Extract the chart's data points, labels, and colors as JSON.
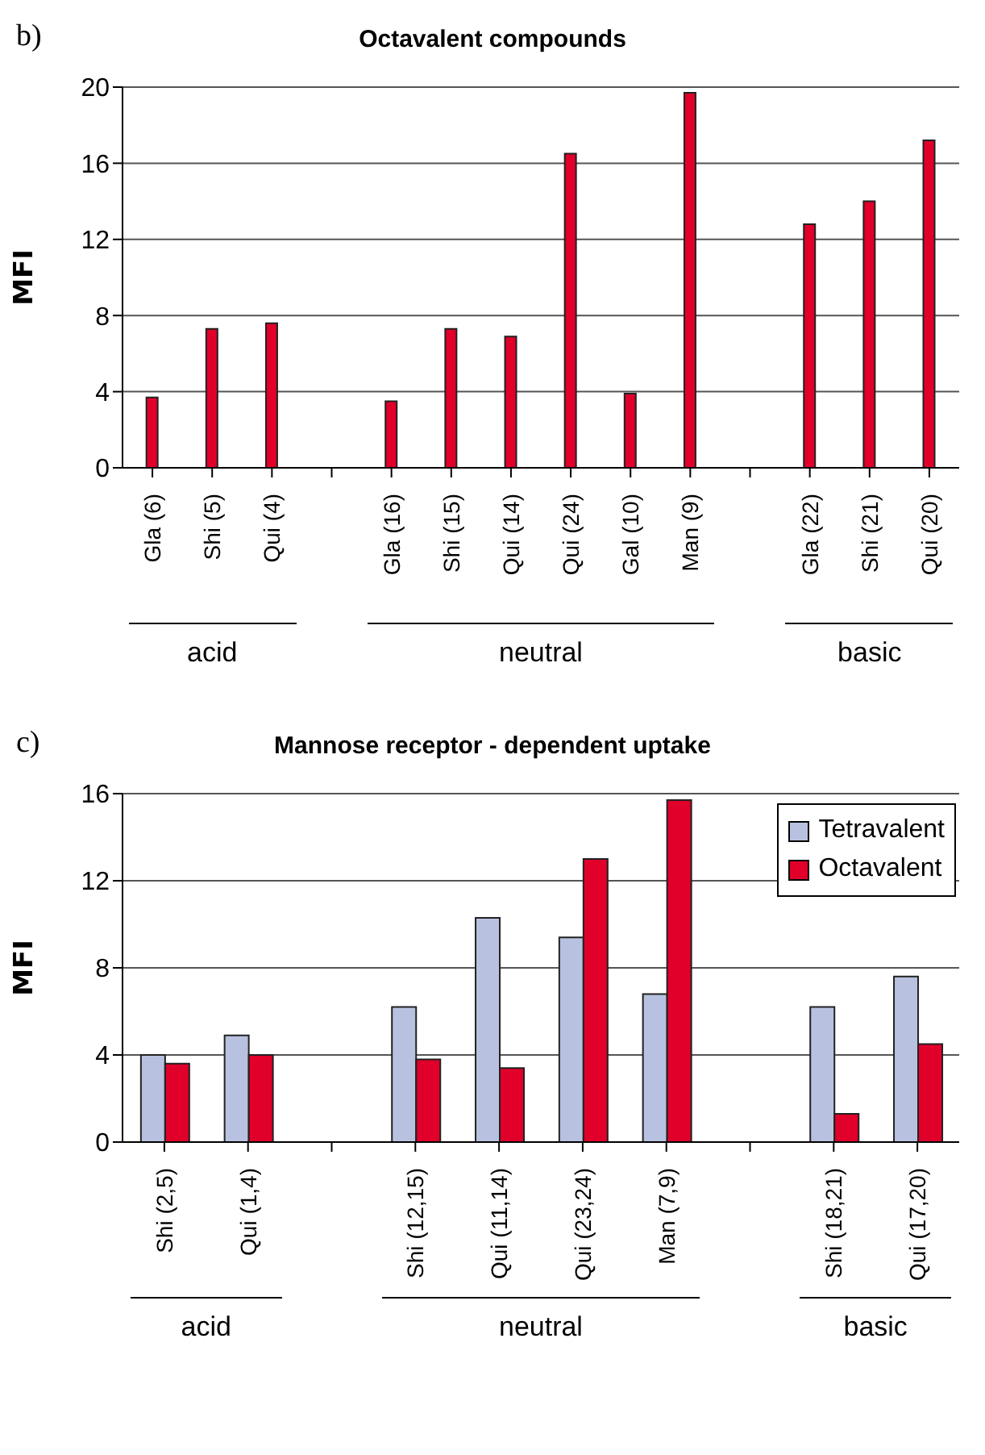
{
  "chart_data": [
    {
      "type": "bar",
      "title": "Octavalent compounds",
      "ylabel": "MFI",
      "annotations": [
        "b)",
        "acid",
        "neutral",
        "basic"
      ],
      "categories": [
        "Gla (6)",
        "Shi (5)",
        "Qui (4)",
        null,
        "Gla (16)",
        "Shi (15)",
        "Qui (14)",
        "Qui (24)",
        "Gal (10)",
        "Man (9)",
        null,
        "Gla (22)",
        "Shi (21)",
        "Qui (20)"
      ],
      "values": [
        3.7,
        7.3,
        7.6,
        null,
        3.5,
        7.3,
        6.9,
        16.5,
        3.9,
        19.7,
        null,
        12.8,
        14.0,
        17.2
      ],
      "color": "#e0002a",
      "ylim": [
        0,
        20
      ],
      "yticks": [
        0,
        4,
        8,
        12,
        16,
        20
      ],
      "grid": "y"
    },
    {
      "type": "bar",
      "title": "Mannose receptor - dependent uptake",
      "ylabel": "MFI",
      "annotations": [
        "c)",
        "acid",
        "neutral",
        "basic"
      ],
      "categories": [
        "Shi (2,5)",
        "Qui (1,4)",
        null,
        "Shi (12,15)",
        "Qui (11,14)",
        "Qui (23,24)",
        "Man (7,9)",
        null,
        "Shi (18,21)",
        "Qui (17,20)"
      ],
      "series": [
        {
          "name": "Tetravalent",
          "color": "#b8c2e0",
          "values": [
            4.0,
            4.9,
            null,
            6.2,
            10.3,
            9.4,
            6.8,
            null,
            6.2,
            7.6
          ]
        },
        {
          "name": "Octavalent",
          "color": "#e0002a",
          "values": [
            3.6,
            4.0,
            null,
            3.8,
            3.4,
            13.0,
            15.7,
            null,
            1.3,
            4.5
          ]
        }
      ],
      "ylim": [
        0,
        16
      ],
      "yticks": [
        0,
        4,
        8,
        12,
        16
      ],
      "grid": "y",
      "legend": "top right"
    }
  ]
}
